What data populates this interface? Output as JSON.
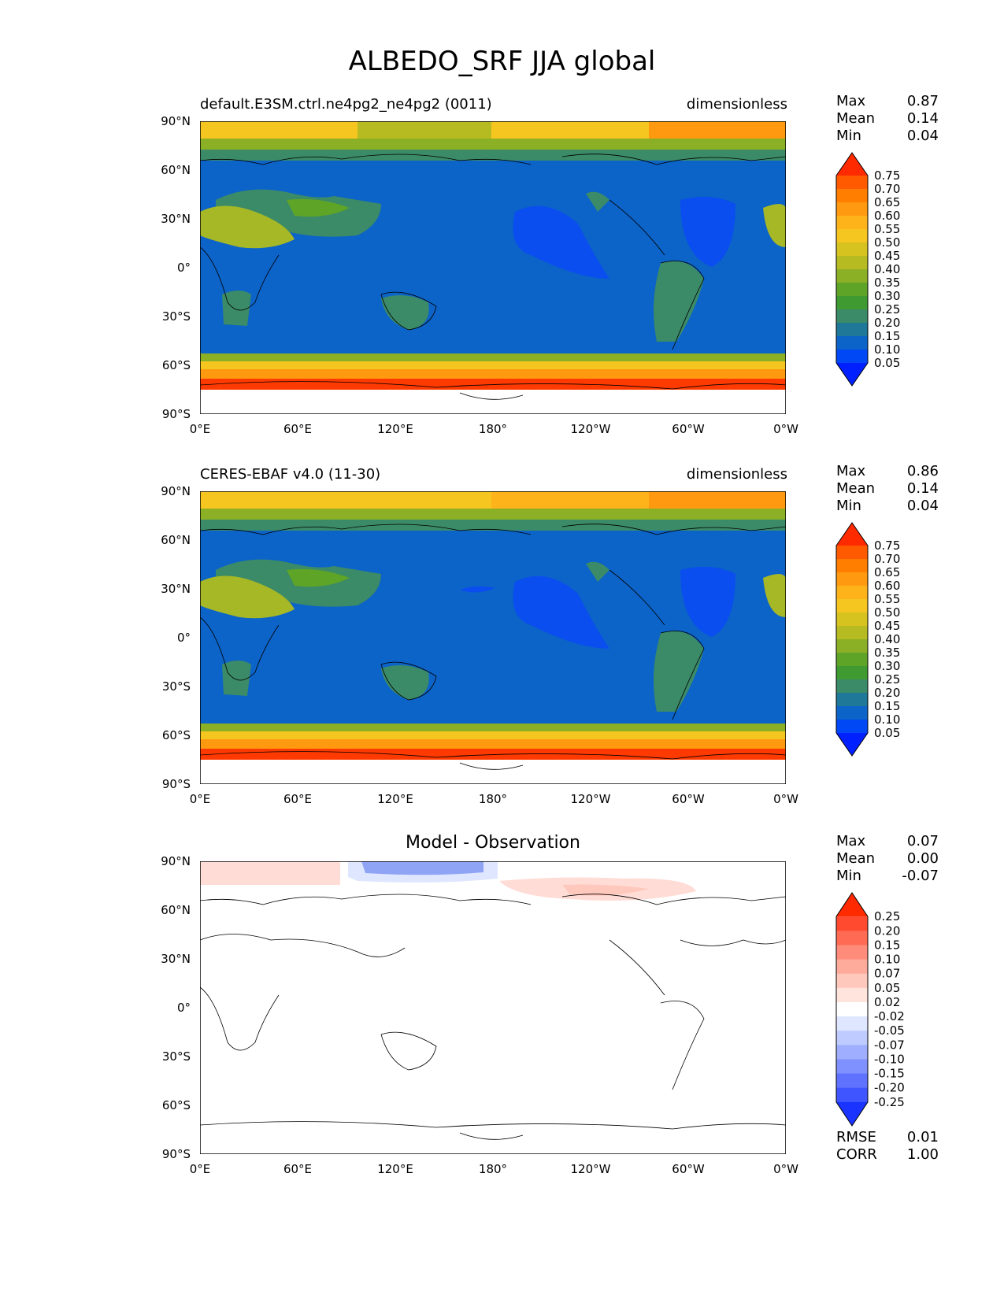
{
  "title": "ALBEDO_SRF JJA global",
  "axes": {
    "lat_labels": [
      "90°N",
      "60°N",
      "30°N",
      "0°",
      "30°S",
      "60°S",
      "90°S"
    ],
    "lon_labels": [
      "0°E",
      "60°E",
      "120°E",
      "180°",
      "120°W",
      "60°W",
      "0°W"
    ]
  },
  "panels": [
    {
      "title_left": "default.E3SM.ctrl.ne4pg2_ne4pg2 (0011)",
      "title_right": "dimensionless",
      "stats": {
        "max_label": "Max",
        "max": "0.87",
        "mean_label": "Mean",
        "mean": "0.14",
        "min_label": "Min",
        "min": "0.04"
      },
      "colorbar": {
        "levels": [
          "0.75",
          "0.70",
          "0.65",
          "0.60",
          "0.55",
          "0.50",
          "0.45",
          "0.40",
          "0.35",
          "0.30",
          "0.25",
          "0.20",
          "0.15",
          "0.10",
          "0.05"
        ],
        "colors": [
          "#ff2a00",
          "#ff5a00",
          "#ff7e00",
          "#ff9a10",
          "#ffb31a",
          "#f5c61f",
          "#d7c31f",
          "#b7bb22",
          "#8cb025",
          "#5ea427",
          "#3f9a32",
          "#3b8a68",
          "#1f7898",
          "#0c63c8",
          "#0047f5",
          "#0020ff"
        ]
      }
    },
    {
      "title_left": "CERES-EBAF v4.0 (11-30)",
      "title_right": "dimensionless",
      "stats": {
        "max_label": "Max",
        "max": "0.86",
        "mean_label": "Mean",
        "mean": "0.14",
        "min_label": "Min",
        "min": "0.04"
      },
      "colorbar": {
        "levels": [
          "0.75",
          "0.70",
          "0.65",
          "0.60",
          "0.55",
          "0.50",
          "0.45",
          "0.40",
          "0.35",
          "0.30",
          "0.25",
          "0.20",
          "0.15",
          "0.10",
          "0.05"
        ],
        "colors": [
          "#ff2a00",
          "#ff5a00",
          "#ff7e00",
          "#ff9a10",
          "#ffb31a",
          "#f5c61f",
          "#d7c31f",
          "#b7bb22",
          "#8cb025",
          "#5ea427",
          "#3f9a32",
          "#3b8a68",
          "#1f7898",
          "#0c63c8",
          "#0047f5",
          "#0020ff"
        ]
      }
    },
    {
      "title_center": "Model - Observation",
      "stats": {
        "max_label": "Max",
        "max": "0.07",
        "mean_label": "Mean",
        "mean": "0.00",
        "min_label": "Min",
        "min": "-0.07"
      },
      "colorbar": {
        "levels": [
          "0.25",
          "0.20",
          "0.15",
          "0.10",
          "0.07",
          "0.05",
          "0.02",
          "-0.02",
          "-0.05",
          "-0.07",
          "-0.10",
          "-0.15",
          "-0.20",
          "-0.25"
        ],
        "colors": [
          "#ff2a00",
          "#ff4a30",
          "#ff6a55",
          "#ff8c7a",
          "#ffab9c",
          "#ffc8bd",
          "#ffe3dd",
          "#ffffff",
          "#dfe6ff",
          "#bfcbff",
          "#9faeff",
          "#7f90ff",
          "#5f72ff",
          "#3f55ff",
          "#1a33ff"
        ]
      },
      "metrics": {
        "rmse_label": "RMSE",
        "rmse": "0.01",
        "corr_label": "CORR",
        "corr": "1.00"
      }
    }
  ],
  "colors": {
    "ice": "#ff3a00",
    "ocean": "#0c63c8",
    "ocean_low": "#0a4ef0",
    "land_mid": "#3b8a68",
    "desert": "#a6b826",
    "diff_pos": "#ffdcd5",
    "diff_neg": "#8fa4f5"
  }
}
